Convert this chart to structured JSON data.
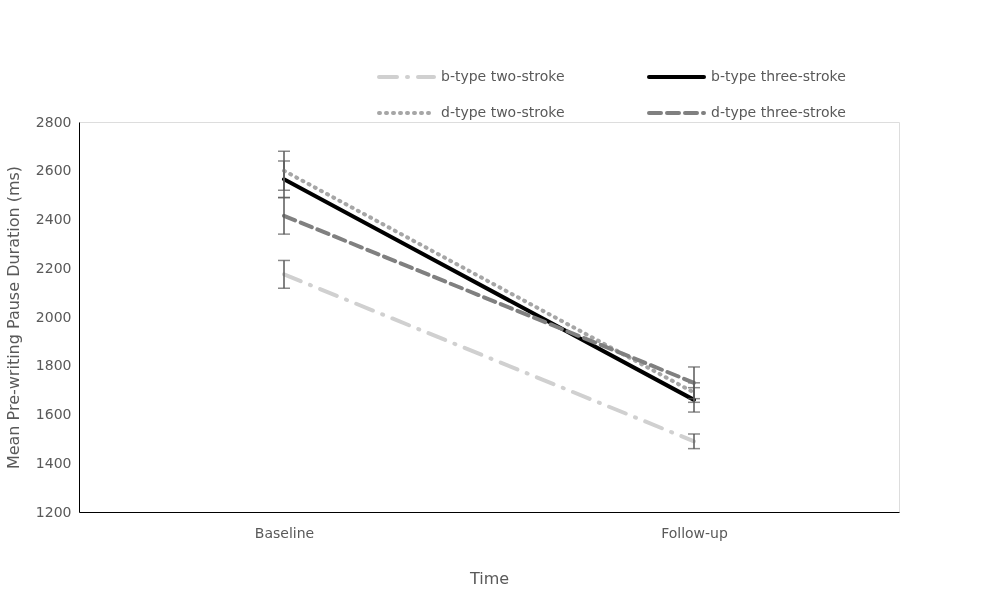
{
  "chart_data": {
    "type": "line",
    "xlabel": "Time",
    "ylabel": "Mean Pre-writing Pause Duration (ms)",
    "categories": [
      "Baseline",
      "Follow-up"
    ],
    "series": [
      {
        "name": "b-type two-stroke",
        "color": "#d0d0d0",
        "line_style": "dashdot",
        "values": [
          2175,
          1490
        ],
        "errors": [
          57,
          30
        ]
      },
      {
        "name": "b-type three-stroke",
        "color": "#000000",
        "line_style": "solid",
        "values": [
          2565,
          1660
        ],
        "errors": [
          75,
          50
        ]
      },
      {
        "name": "d-type two-stroke",
        "color": "#a6a6a6",
        "line_style": "dotted",
        "values": [
          2600,
          1690
        ],
        "errors": [
          80,
          40
        ]
      },
      {
        "name": "d-type three-stroke",
        "color": "#808080",
        "line_style": "dashed",
        "values": [
          2415,
          1730
        ],
        "errors": [
          75,
          65
        ]
      }
    ],
    "ylim": [
      1200,
      2800
    ],
    "yticks": [
      1200,
      1400,
      1600,
      1800,
      2000,
      2200,
      2400,
      2600,
      2800
    ],
    "grid": false,
    "legend": "top right",
    "marker": "none"
  }
}
